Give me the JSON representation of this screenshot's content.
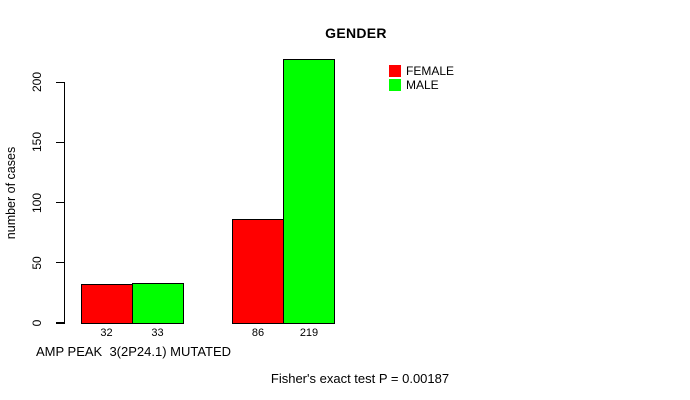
{
  "figure": {
    "title": "GENDER",
    "x_axis_label": "AMP PEAK  3(2P24.1) MUTATED",
    "y_axis_label": "number of cases",
    "footer_note": "Fisher's exact test P = 0.00187"
  },
  "legend": {
    "items": [
      {
        "label": "FEMALE",
        "color": "#FF0000"
      },
      {
        "label": "MALE",
        "color": "#00FF00"
      }
    ]
  },
  "chart_data": {
    "type": "bar",
    "title": "GENDER",
    "xlabel": "AMP PEAK  3(2P24.1) MUTATED",
    "ylabel": "number of cases",
    "categories": [
      "",
      ""
    ],
    "series": [
      {
        "name": "FEMALE",
        "color": "#FF0000",
        "values": [
          32,
          86
        ]
      },
      {
        "name": "MALE",
        "color": "#00FF00",
        "values": [
          33,
          219
        ]
      }
    ],
    "value_labels": [
      [
        32,
        33
      ],
      [
        86,
        219
      ]
    ],
    "yticks": [
      0,
      50,
      100,
      150,
      200
    ],
    "ylim": [
      0,
      220
    ],
    "grid": false,
    "legend_position": "top-right",
    "annotation": "Fisher's exact test P = 0.00187"
  }
}
